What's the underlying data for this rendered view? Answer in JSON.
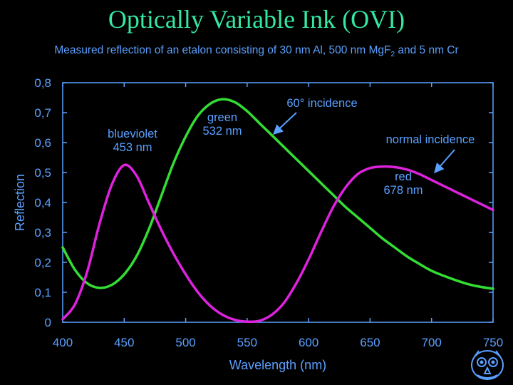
{
  "slide": {
    "title": "Optically Variable Ink (OVI)",
    "subtitle_main": "Measured reflection of an etalon consisting of 30 nm Al, 500 nm MgF",
    "subtitle_sub": "2",
    "subtitle_end": " and 5 nm Cr"
  },
  "colors": {
    "background": "#000000",
    "title": "#34e8a2",
    "text": "#5aa0ff",
    "axis": "#5aa0ff",
    "green_series": "#33dd33",
    "magenta_series": "#dd22dd",
    "logo": "#5aa0ff"
  },
  "logo": {
    "icon": "university-seal-icon"
  },
  "chart_data": {
    "type": "line",
    "xlabel": "Wavelength (nm)",
    "ylabel": "Reflection",
    "xlim": [
      400,
      750
    ],
    "ylim": [
      0,
      0.8
    ],
    "xticks": [
      400,
      450,
      500,
      550,
      600,
      650,
      700,
      750
    ],
    "xtick_labels": [
      "400",
      "450",
      "500",
      "550",
      "600",
      "650",
      "700",
      "750"
    ],
    "yticks": [
      0,
      0.1,
      0.2,
      0.3,
      0.4,
      0.5,
      0.6,
      0.7,
      0.8
    ],
    "ytick_labels": [
      "0",
      "0,1",
      "0,2",
      "0,3",
      "0,4",
      "0,5",
      "0,6",
      "0,7",
      "0,8"
    ],
    "grid": false,
    "series": [
      {
        "name": "60° incidence",
        "color": "#33dd33",
        "x": [
          400,
          410,
          420,
          430,
          440,
          450,
          460,
          470,
          480,
          490,
          500,
          510,
          520,
          530,
          540,
          550,
          560,
          570,
          580,
          590,
          600,
          610,
          620,
          630,
          640,
          650,
          660,
          670,
          680,
          690,
          700,
          710,
          720,
          730,
          740,
          750
        ],
        "y": [
          0.25,
          0.175,
          0.13,
          0.115,
          0.125,
          0.16,
          0.22,
          0.31,
          0.42,
          0.53,
          0.62,
          0.69,
          0.73,
          0.745,
          0.735,
          0.705,
          0.665,
          0.625,
          0.585,
          0.545,
          0.505,
          0.465,
          0.425,
          0.385,
          0.35,
          0.315,
          0.28,
          0.25,
          0.22,
          0.195,
          0.172,
          0.155,
          0.14,
          0.127,
          0.118,
          0.112
        ]
      },
      {
        "name": "normal incidence",
        "color": "#dd22dd",
        "x": [
          400,
          410,
          420,
          430,
          440,
          450,
          460,
          470,
          480,
          490,
          500,
          510,
          520,
          530,
          540,
          550,
          560,
          570,
          580,
          590,
          600,
          610,
          620,
          630,
          640,
          650,
          660,
          670,
          680,
          690,
          700,
          710,
          720,
          730,
          740,
          750
        ],
        "y": [
          0.01,
          0.06,
          0.17,
          0.33,
          0.46,
          0.525,
          0.49,
          0.4,
          0.31,
          0.23,
          0.16,
          0.1,
          0.055,
          0.025,
          0.008,
          0.002,
          0.005,
          0.025,
          0.065,
          0.13,
          0.21,
          0.3,
          0.385,
          0.45,
          0.495,
          0.515,
          0.52,
          0.518,
          0.51,
          0.495,
          0.475,
          0.455,
          0.435,
          0.415,
          0.395,
          0.375
        ]
      }
    ],
    "annotations": [
      {
        "id": "blueviolet",
        "lines": [
          "blueviolet",
          "453 nm"
        ]
      },
      {
        "id": "green",
        "lines": [
          "green",
          "532 nm"
        ]
      },
      {
        "id": "red",
        "lines": [
          "red",
          "678 nm"
        ]
      },
      {
        "id": "sixty",
        "lines": [
          "60° incidence"
        ]
      },
      {
        "id": "normal",
        "lines": [
          "normal incidence"
        ]
      }
    ]
  }
}
